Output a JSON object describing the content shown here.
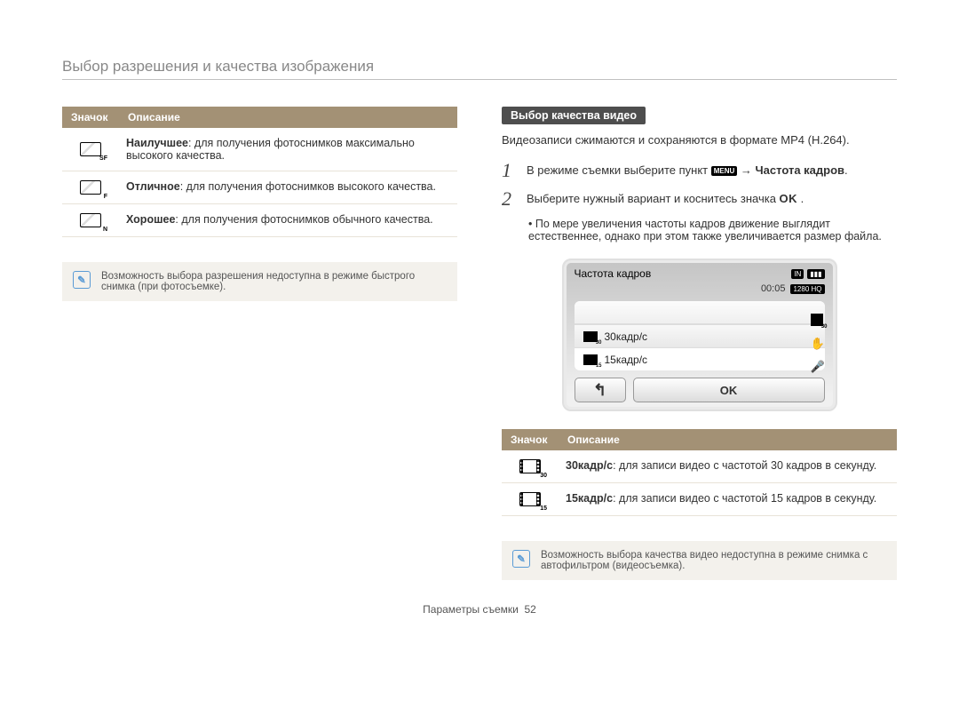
{
  "page_title": "Выбор разрешения и качества изображения",
  "left": {
    "table_headers": {
      "icon": "Значок",
      "desc": "Описание"
    },
    "rows": [
      {
        "icon_sub": "SF",
        "term": "Наилучшее",
        "text": ": для получения фотоснимков максимально высокого качества."
      },
      {
        "icon_sub": "F",
        "term": "Отличное",
        "text": ": для получения фотоснимков высокого качества."
      },
      {
        "icon_sub": "N",
        "term": "Хорошее",
        "text": ": для получения фотоснимков обычного качества."
      }
    ],
    "note": "Возможность выбора разрешения недоступна в режиме быстрого снимка (при фотосъемке)."
  },
  "right": {
    "section_title": "Выбор качества видео",
    "intro": "Видеозаписи сжимаются и сохраняются в формате MP4 (H.264).",
    "steps": {
      "s1_a": "В режиме съемки выберите пункт ",
      "s1_menu": "MENU",
      "s1_b": " → ",
      "s1_bold": "Частота кадров",
      "s1_c": ".",
      "s2_a": "Выберите нужный вариант и коснитесь значка ",
      "s2_ok": "OK",
      "s2_b": " ."
    },
    "bullet": "По мере увеличения частоты кадров движение выглядит естественнее, однако при этом также увеличивается размер файла.",
    "camera": {
      "title": "Частота кадров",
      "status_in": "IN",
      "time": "00:05",
      "res": "1280 HQ",
      "options": [
        {
          "sub": "30",
          "label": "30кадр/с"
        },
        {
          "sub": "15",
          "label": "15кадр/с"
        }
      ],
      "back": "↰",
      "ok": "OK",
      "side_sub": "30"
    },
    "table_headers": {
      "icon": "Значок",
      "desc": "Описание"
    },
    "rows2": [
      {
        "icon_sub": "30",
        "term": "30кадр/с",
        "text": ": для записи видео с частотой 30 кадров в секунду."
      },
      {
        "icon_sub": "15",
        "term": "15кадр/с",
        "text": ": для записи видео с частотой 15 кадров в секунду."
      }
    ],
    "note": "Возможность выбора качества видео недоступна в режиме снимка с автофильтром (видеосъемка)."
  },
  "footer": {
    "section": "Параметры съемки",
    "page": "52"
  }
}
